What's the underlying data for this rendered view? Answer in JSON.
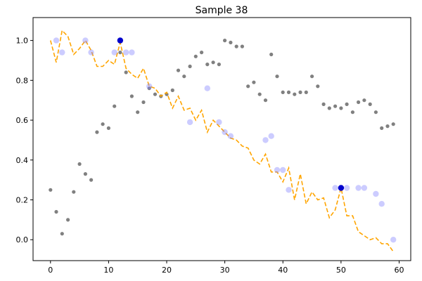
{
  "chart_data": {
    "type": "scatter",
    "title": "Sample 38",
    "xlabel": "",
    "ylabel": "",
    "xlim": [
      -3.0,
      62.0
    ],
    "ylim": [
      -0.105,
      1.115
    ],
    "xticks": [
      0,
      10,
      20,
      30,
      40,
      50,
      60
    ],
    "yticks": [
      0.0,
      0.2,
      0.4,
      0.6,
      0.8,
      1.0
    ],
    "xtick_labels": [
      "0",
      "10",
      "20",
      "30",
      "40",
      "50",
      "60"
    ],
    "ytick_labels": [
      "0.0",
      "0.2",
      "0.4",
      "0.6",
      "0.8",
      "1.0"
    ],
    "grid": false,
    "series": [
      {
        "kind": "scatter",
        "color": "#808080",
        "points": [
          [
            0,
            0.25
          ],
          [
            1,
            0.14
          ],
          [
            2,
            0.03
          ],
          [
            3,
            0.1
          ],
          [
            4,
            0.24
          ],
          [
            5,
            0.38
          ],
          [
            6,
            0.33
          ],
          [
            7,
            0.3
          ],
          [
            8,
            0.54
          ],
          [
            9,
            0.58
          ],
          [
            10,
            0.56
          ],
          [
            11,
            0.67
          ],
          [
            12,
            0.94
          ],
          [
            13,
            0.84
          ],
          [
            14,
            0.72
          ],
          [
            15,
            0.64
          ],
          [
            16,
            0.69
          ],
          [
            17,
            0.76
          ],
          [
            18,
            0.73
          ],
          [
            19,
            0.72
          ],
          [
            20,
            0.73
          ],
          [
            21,
            0.75
          ],
          [
            22,
            0.85
          ],
          [
            23,
            0.82
          ],
          [
            24,
            0.87
          ],
          [
            25,
            0.92
          ],
          [
            26,
            0.94
          ],
          [
            27,
            0.88
          ],
          [
            28,
            0.89
          ],
          [
            29,
            0.88
          ],
          [
            30,
            1.0
          ],
          [
            31,
            0.99
          ],
          [
            32,
            0.97
          ],
          [
            33,
            0.97
          ],
          [
            34,
            0.77
          ],
          [
            35,
            0.79
          ],
          [
            36,
            0.73
          ],
          [
            37,
            0.7
          ],
          [
            38,
            0.93
          ],
          [
            39,
            0.82
          ],
          [
            40,
            0.74
          ],
          [
            41,
            0.74
          ],
          [
            42,
            0.73
          ],
          [
            43,
            0.74
          ],
          [
            44,
            0.74
          ],
          [
            45,
            0.82
          ],
          [
            46,
            0.77
          ],
          [
            47,
            0.68
          ],
          [
            48,
            0.66
          ],
          [
            49,
            0.67
          ],
          [
            50,
            0.66
          ],
          [
            51,
            0.68
          ],
          [
            52,
            0.64
          ],
          [
            53,
            0.69
          ],
          [
            54,
            0.7
          ],
          [
            55,
            0.68
          ],
          [
            56,
            0.64
          ],
          [
            57,
            0.56
          ],
          [
            58,
            0.57
          ],
          [
            59,
            0.58
          ]
        ]
      },
      {
        "kind": "line",
        "color": "#FFA500",
        "dashed": true,
        "points": [
          [
            0,
            1.0
          ],
          [
            1,
            0.89
          ],
          [
            2,
            1.05
          ],
          [
            3,
            1.02
          ],
          [
            4,
            0.93
          ],
          [
            5,
            0.96
          ],
          [
            6,
            1.0
          ],
          [
            7,
            0.95
          ],
          [
            8,
            0.87
          ],
          [
            9,
            0.87
          ],
          [
            10,
            0.9
          ],
          [
            11,
            0.88
          ],
          [
            12,
            0.99
          ],
          [
            13,
            0.86
          ],
          [
            14,
            0.83
          ],
          [
            15,
            0.81
          ],
          [
            16,
            0.86
          ],
          [
            17,
            0.77
          ],
          [
            18,
            0.76
          ],
          [
            19,
            0.72
          ],
          [
            20,
            0.74
          ],
          [
            21,
            0.66
          ],
          [
            22,
            0.72
          ],
          [
            23,
            0.65
          ],
          [
            24,
            0.66
          ],
          [
            25,
            0.6
          ],
          [
            26,
            0.65
          ],
          [
            27,
            0.54
          ],
          [
            28,
            0.6
          ],
          [
            29,
            0.57
          ],
          [
            30,
            0.54
          ],
          [
            31,
            0.51
          ],
          [
            32,
            0.5
          ],
          [
            33,
            0.47
          ],
          [
            34,
            0.46
          ],
          [
            35,
            0.4
          ],
          [
            36,
            0.38
          ],
          [
            37,
            0.43
          ],
          [
            38,
            0.34
          ],
          [
            39,
            0.34
          ],
          [
            40,
            0.29
          ],
          [
            41,
            0.36
          ],
          [
            42,
            0.2
          ],
          [
            43,
            0.33
          ],
          [
            44,
            0.18
          ],
          [
            45,
            0.24
          ],
          [
            46,
            0.2
          ],
          [
            47,
            0.21
          ],
          [
            48,
            0.11
          ],
          [
            49,
            0.15
          ],
          [
            50,
            0.26
          ],
          [
            51,
            0.12
          ],
          [
            52,
            0.12
          ],
          [
            53,
            0.04
          ],
          [
            54,
            0.02
          ],
          [
            55,
            0.0
          ],
          [
            56,
            0.01
          ],
          [
            57,
            -0.02
          ],
          [
            58,
            -0.02
          ],
          [
            59,
            -0.06
          ]
        ]
      },
      {
        "kind": "scatter",
        "color": "#8080FF",
        "opacity": 0.4,
        "points": [
          [
            1,
            1.0
          ],
          [
            2,
            0.94
          ],
          [
            6,
            1.0
          ],
          [
            7,
            0.94
          ],
          [
            11,
            0.94
          ],
          [
            13,
            0.94
          ],
          [
            14,
            0.94
          ],
          [
            17,
            0.77
          ],
          [
            24,
            0.59
          ],
          [
            27,
            0.76
          ],
          [
            29,
            0.59
          ],
          [
            30,
            0.54
          ],
          [
            31,
            0.52
          ],
          [
            37,
            0.5
          ],
          [
            38,
            0.52
          ],
          [
            39,
            0.35
          ],
          [
            40,
            0.35
          ],
          [
            41,
            0.25
          ],
          [
            49,
            0.26
          ],
          [
            51,
            0.26
          ],
          [
            53,
            0.26
          ],
          [
            54,
            0.26
          ],
          [
            56,
            0.23
          ],
          [
            57,
            0.18
          ],
          [
            59,
            0.0
          ]
        ]
      },
      {
        "kind": "scatter",
        "color": "#0000CC",
        "points": [
          [
            12,
            1.0
          ],
          [
            50,
            0.26
          ]
        ]
      }
    ]
  }
}
